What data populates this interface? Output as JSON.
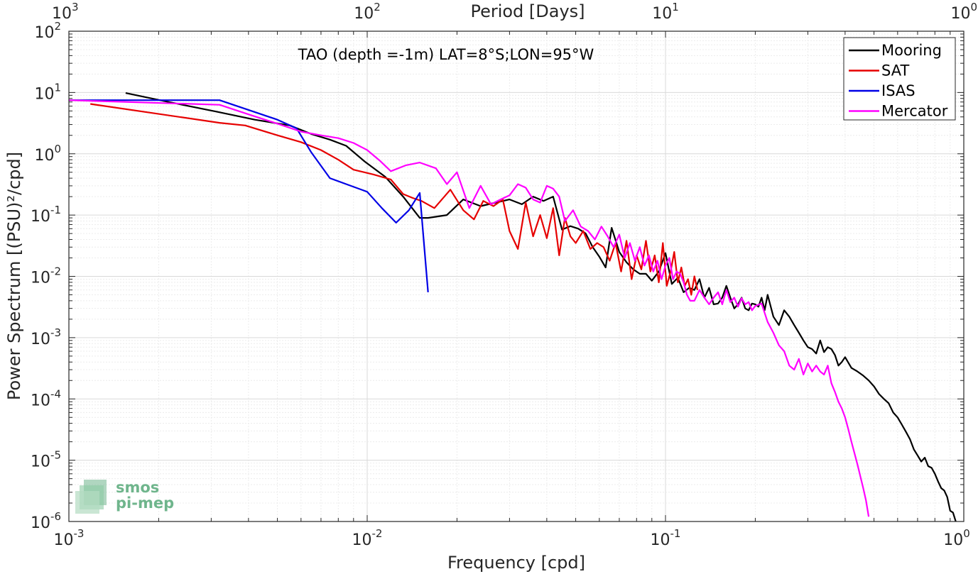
{
  "chart_data": {
    "type": "line",
    "title": "TAO (depth =-1m) LAT=8°S;LON=95°W",
    "xlabel": "Frequency [cpd]",
    "ylabel": "Power Spectrum [(PSU)²/cpd]",
    "top_axis_label": "Period [Days]",
    "x_scale": "log",
    "y_scale": "log",
    "xlim": [
      0.001,
      1
    ],
    "ylim": [
      1e-06,
      100
    ],
    "grid": "on",
    "legend_position": "top-right",
    "x_ticks": [
      {
        "value": 0.001,
        "base": "10",
        "exp": "-3"
      },
      {
        "value": 0.01,
        "base": "10",
        "exp": "-2"
      },
      {
        "value": 0.1,
        "base": "10",
        "exp": "-1"
      },
      {
        "value": 1,
        "base": "10",
        "exp": "0"
      }
    ],
    "y_ticks": [
      {
        "value": 100,
        "base": "10",
        "exp": "2"
      },
      {
        "value": 10,
        "base": "10",
        "exp": "1"
      },
      {
        "value": 1,
        "base": "10",
        "exp": "0"
      },
      {
        "value": 0.1,
        "base": "10",
        "exp": "-1"
      },
      {
        "value": 0.01,
        "base": "10",
        "exp": "-2"
      },
      {
        "value": 0.001,
        "base": "10",
        "exp": "-3"
      },
      {
        "value": 0.0001,
        "base": "10",
        "exp": "-4"
      },
      {
        "value": 1e-05,
        "base": "10",
        "exp": "-5"
      },
      {
        "value": 1e-06,
        "base": "10",
        "exp": "-6"
      }
    ],
    "top_ticks": [
      {
        "value": 0.001,
        "base": "10",
        "exp": "3"
      },
      {
        "value": 0.01,
        "base": "10",
        "exp": "2"
      },
      {
        "value": 0.1,
        "base": "10",
        "exp": "1"
      },
      {
        "value": 1,
        "base": "10",
        "exp": "0"
      }
    ],
    "series": [
      {
        "name": "Mooring",
        "color": "#000000",
        "x": [
          0.00155,
          0.0021,
          0.0031,
          0.0042,
          0.0055,
          0.0065,
          0.0075,
          0.0085,
          0.0098,
          0.0115,
          0.0132,
          0.015,
          0.016,
          0.0185,
          0.021,
          0.024,
          0.027,
          0.03,
          0.033,
          0.036,
          0.039,
          0.042,
          0.045,
          0.048,
          0.051,
          0.054,
          0.057,
          0.06,
          0.063,
          0.066,
          0.07,
          0.074,
          0.078,
          0.082,
          0.086,
          0.09,
          0.095,
          0.1,
          0.105,
          0.11,
          0.115,
          0.12,
          0.125,
          0.13,
          0.135,
          0.14,
          0.145,
          0.15,
          0.155,
          0.16,
          0.165,
          0.17,
          0.175,
          0.18,
          0.185,
          0.19,
          0.195,
          0.2,
          0.205,
          0.21,
          0.215,
          0.22,
          0.23,
          0.24,
          0.25,
          0.26,
          0.27,
          0.28,
          0.29,
          0.3,
          0.31,
          0.32,
          0.33,
          0.34,
          0.35,
          0.36,
          0.37,
          0.38,
          0.39,
          0.4,
          0.42,
          0.44,
          0.46,
          0.48,
          0.5,
          0.52,
          0.54,
          0.56,
          0.58,
          0.6,
          0.62,
          0.64,
          0.66,
          0.68,
          0.7,
          0.72,
          0.74,
          0.76,
          0.78,
          0.8,
          0.82,
          0.84,
          0.86,
          0.88,
          0.9,
          0.92,
          0.94
        ],
        "y": [
          9.8,
          7.2,
          4.9,
          3.6,
          2.9,
          2.1,
          1.7,
          1.35,
          0.75,
          0.42,
          0.2,
          0.09,
          0.09,
          0.1,
          0.18,
          0.14,
          0.16,
          0.18,
          0.15,
          0.2,
          0.17,
          0.2,
          0.058,
          0.066,
          0.06,
          0.05,
          0.03,
          0.021,
          0.014,
          0.062,
          0.025,
          0.017,
          0.013,
          0.011,
          0.011,
          0.0085,
          0.012,
          0.024,
          0.0075,
          0.0095,
          0.0055,
          0.0065,
          0.006,
          0.009,
          0.0045,
          0.0065,
          0.0035,
          0.0036,
          0.0045,
          0.007,
          0.0045,
          0.003,
          0.0035,
          0.0045,
          0.003,
          0.0028,
          0.0036,
          0.0035,
          0.0032,
          0.0045,
          0.0028,
          0.005,
          0.0022,
          0.0016,
          0.0028,
          0.0022,
          0.0016,
          0.0012,
          0.0009,
          0.0007,
          0.00065,
          0.00055,
          0.0009,
          0.00058,
          0.0007,
          0.00065,
          0.00052,
          0.00035,
          0.0004,
          0.00048,
          0.00032,
          0.00028,
          0.00024,
          0.0002,
          0.00016,
          0.00012,
          0.0001,
          8.5e-05,
          6e-05,
          5e-05,
          3.8e-05,
          2.9e-05,
          2.2e-05,
          1.5e-05,
          1.2e-05,
          9.5e-06,
          1.1e-05,
          8e-06,
          7.5e-06,
          6e-06,
          4.5e-06,
          3.5e-06,
          3.2e-06,
          2.5e-06,
          1.5e-06,
          1.4e-06,
          1e-06
        ]
      },
      {
        "name": "SAT",
        "color": "#e60000",
        "x": [
          0.00118,
          0.0032,
          0.0039,
          0.005,
          0.006,
          0.007,
          0.008,
          0.009,
          0.0105,
          0.012,
          0.0132,
          0.0142,
          0.0152,
          0.0168,
          0.019,
          0.021,
          0.0228,
          0.0245,
          0.0265,
          0.0285,
          0.03,
          0.032,
          0.034,
          0.036,
          0.038,
          0.04,
          0.042,
          0.044,
          0.046,
          0.048,
          0.05,
          0.053,
          0.056,
          0.059,
          0.062,
          0.065,
          0.068,
          0.071,
          0.074,
          0.077,
          0.08,
          0.083,
          0.086,
          0.089,
          0.092,
          0.095,
          0.098,
          0.101,
          0.104,
          0.107,
          0.11,
          0.113,
          0.116,
          0.119,
          0.122,
          0.125,
          0.128
        ],
        "y": [
          6.5,
          3.2,
          2.9,
          2.0,
          1.55,
          1.15,
          0.8,
          0.55,
          0.46,
          0.38,
          0.22,
          0.19,
          0.17,
          0.13,
          0.26,
          0.12,
          0.085,
          0.17,
          0.14,
          0.18,
          0.055,
          0.028,
          0.16,
          0.045,
          0.1,
          0.042,
          0.13,
          0.022,
          0.09,
          0.045,
          0.035,
          0.055,
          0.028,
          0.035,
          0.03,
          0.018,
          0.035,
          0.012,
          0.038,
          0.009,
          0.022,
          0.013,
          0.038,
          0.012,
          0.022,
          0.008,
          0.035,
          0.007,
          0.012,
          0.025,
          0.008,
          0.014,
          0.007,
          0.009,
          0.005,
          0.01,
          0.006
        ]
      },
      {
        "name": "ISAS",
        "color": "#0000e6",
        "x": [
          0.001,
          0.0032,
          0.005,
          0.0058,
          0.0065,
          0.0075,
          0.0085,
          0.01,
          0.0112,
          0.0125,
          0.0138,
          0.015,
          0.016
        ],
        "y": [
          7.5,
          7.5,
          3.6,
          2.6,
          1.05,
          0.4,
          0.32,
          0.24,
          0.13,
          0.075,
          0.12,
          0.23,
          0.0055
        ]
      },
      {
        "name": "Mercator",
        "color": "#ff00ff",
        "x": [
          0.001,
          0.0032,
          0.004,
          0.005,
          0.006,
          0.007,
          0.008,
          0.009,
          0.01,
          0.011,
          0.012,
          0.0135,
          0.015,
          0.017,
          0.0185,
          0.02,
          0.022,
          0.024,
          0.026,
          0.028,
          0.03,
          0.032,
          0.034,
          0.036,
          0.038,
          0.04,
          0.042,
          0.044,
          0.046,
          0.049,
          0.052,
          0.055,
          0.058,
          0.061,
          0.064,
          0.067,
          0.07,
          0.073,
          0.076,
          0.079,
          0.082,
          0.085,
          0.088,
          0.091,
          0.094,
          0.097,
          0.1,
          0.103,
          0.106,
          0.109,
          0.112,
          0.115,
          0.118,
          0.121,
          0.125,
          0.13,
          0.135,
          0.14,
          0.145,
          0.15,
          0.155,
          0.16,
          0.165,
          0.17,
          0.175,
          0.18,
          0.185,
          0.19,
          0.195,
          0.2,
          0.21,
          0.22,
          0.23,
          0.24,
          0.25,
          0.26,
          0.27,
          0.28,
          0.29,
          0.3,
          0.31,
          0.32,
          0.33,
          0.34,
          0.35,
          0.36,
          0.37,
          0.38,
          0.39,
          0.4,
          0.41,
          0.42,
          0.43,
          0.44,
          0.45,
          0.46,
          0.47,
          0.48
        ],
        "y": [
          7.5,
          6.3,
          4.4,
          3.1,
          2.3,
          2.0,
          1.8,
          1.5,
          1.15,
          0.78,
          0.52,
          0.65,
          0.72,
          0.58,
          0.32,
          0.5,
          0.13,
          0.3,
          0.15,
          0.18,
          0.21,
          0.32,
          0.28,
          0.18,
          0.16,
          0.3,
          0.27,
          0.2,
          0.08,
          0.12,
          0.065,
          0.055,
          0.04,
          0.065,
          0.045,
          0.03,
          0.048,
          0.02,
          0.035,
          0.018,
          0.03,
          0.015,
          0.022,
          0.012,
          0.018,
          0.009,
          0.015,
          0.02,
          0.009,
          0.012,
          0.011,
          0.008,
          0.005,
          0.004,
          0.004,
          0.006,
          0.0045,
          0.0035,
          0.0045,
          0.0055,
          0.0035,
          0.006,
          0.0038,
          0.0045,
          0.0032,
          0.0044,
          0.0035,
          0.0038,
          0.0028,
          0.0033,
          0.0036,
          0.0018,
          0.0012,
          0.00075,
          0.0006,
          0.00035,
          0.0003,
          0.00045,
          0.00025,
          0.00038,
          0.00028,
          0.00035,
          0.00028,
          0.00025,
          0.00035,
          0.00018,
          0.00013,
          9e-05,
          7e-05,
          5e-05,
          3.2e-05,
          2e-05,
          1.3e-05,
          8.5e-06,
          5.5e-06,
          3.5e-06,
          2.2e-06,
          1.2e-06
        ]
      }
    ]
  },
  "logo": {
    "line1": "smos",
    "line2": "pi-mep"
  }
}
